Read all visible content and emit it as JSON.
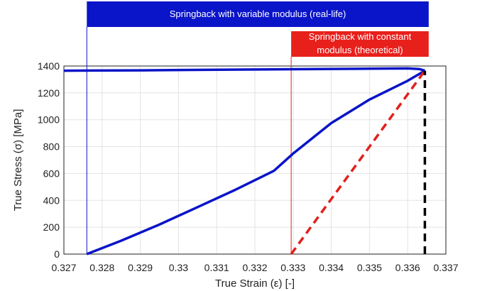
{
  "chart_data": {
    "type": "line",
    "xlabel": "True Strain (ε) [-]",
    "ylabel": "True Stress (σ) [MPa]",
    "xlim": [
      0.327,
      0.337
    ],
    "ylim": [
      0,
      1400
    ],
    "x_ticks": [
      0.327,
      0.328,
      0.329,
      0.33,
      0.331,
      0.332,
      0.333,
      0.334,
      0.335,
      0.336,
      0.337
    ],
    "x_tick_labels": [
      "0.327",
      "0.328",
      "0.329",
      "0.33",
      "0.331",
      "0.332",
      "0.333",
      "0.334",
      "0.335",
      "0.336",
      "0.337"
    ],
    "y_ticks": [
      0,
      200,
      400,
      600,
      800,
      1000,
      1200,
      1400
    ],
    "y_tick_labels": [
      "0",
      "200",
      "400",
      "600",
      "800",
      "1000",
      "1200",
      "1400"
    ],
    "grid": true,
    "series": [
      {
        "style": "solid",
        "color": "#0a14c8",
        "points": [
          [
            0.327,
            1365
          ],
          [
            0.329,
            1368
          ],
          [
            0.331,
            1372
          ],
          [
            0.333,
            1376
          ],
          [
            0.335,
            1380
          ],
          [
            0.336,
            1382
          ],
          [
            0.3363,
            1378
          ],
          [
            0.33645,
            1365
          ]
        ]
      },
      {
        "style": "solid",
        "color": "#0a14c8",
        "points": [
          [
            0.3276,
            0
          ],
          [
            0.3285,
            100
          ],
          [
            0.3295,
            220
          ],
          [
            0.3305,
            350
          ],
          [
            0.3315,
            480
          ],
          [
            0.3325,
            620
          ],
          [
            0.333,
            748
          ],
          [
            0.334,
            975
          ],
          [
            0.335,
            1150
          ],
          [
            0.336,
            1290
          ],
          [
            0.33645,
            1365
          ]
        ]
      },
      {
        "style": "dashed",
        "color": "#e0201c",
        "points": [
          [
            0.33295,
            0
          ],
          [
            0.33645,
            1365
          ]
        ]
      },
      {
        "style": "dashed",
        "color": "#000000",
        "points": [
          [
            0.33645,
            0
          ],
          [
            0.33645,
            1365
          ]
        ]
      }
    ],
    "markers": [
      {
        "x": 0.3276,
        "color": "#0a14c8"
      },
      {
        "x": 0.33295,
        "color": "#e0201c"
      }
    ],
    "annotations": [
      {
        "text": "Springback with variable modulus (real-life)",
        "color": "#0a14c8",
        "x_start": 0.3276,
        "x_end": 0.33655,
        "lines": [
          "Springback with variable modulus (real-life)"
        ]
      },
      {
        "text": "Springback with constant modulus (theoretical)",
        "color": "#e8201c",
        "x_start": 0.33295,
        "x_end": 0.33655,
        "lines": [
          "Springback with constant",
          "modulus (theoretical)"
        ]
      }
    ]
  }
}
